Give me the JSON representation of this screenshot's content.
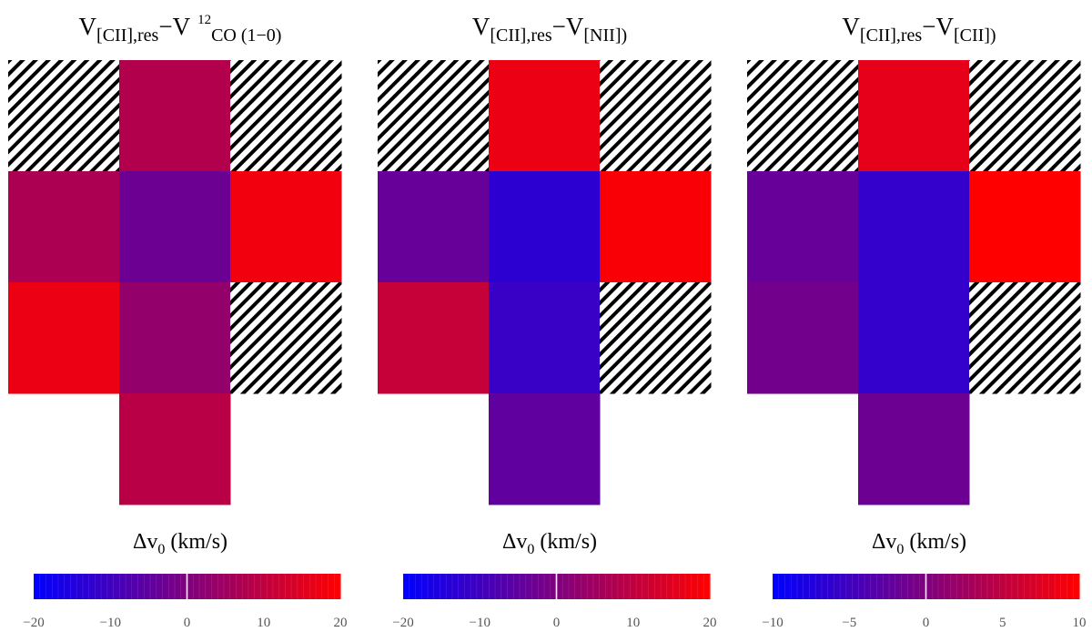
{
  "chart_data": [
    {
      "type": "heatmap",
      "title_parts": {
        "v": "V",
        "sub1": "[CII],res",
        "minus": "−",
        "v2": "V",
        "sup": "12",
        "tail": "CO (1−0)"
      },
      "grid_rows": 4,
      "grid_cols": 3,
      "cells": [
        [
          null,
          8,
          null
        ],
        [
          7,
          -3,
          18
        ],
        [
          17,
          3,
          null
        ],
        [
          "blank",
          9,
          "blank"
        ]
      ],
      "colorbar": {
        "label": "Δv",
        "label_sub": "0",
        "label_unit": "(km/s)",
        "vmin": -20,
        "vmax": 20,
        "ticks": [
          "−20",
          "−10",
          "0",
          "10",
          "20"
        ],
        "tick_values": [
          -20,
          -10,
          0,
          10,
          20
        ]
      }
    },
    {
      "type": "heatmap",
      "title_parts": {
        "v": "V",
        "sub1": "[CII],res",
        "minus": "−",
        "v2": "V",
        "sub2": "[NII])"
      },
      "grid_rows": 4,
      "grid_cols": 3,
      "cells": [
        [
          null,
          17,
          null
        ],
        [
          -4,
          -13,
          19
        ],
        [
          11,
          -11,
          null
        ],
        [
          "blank",
          -5,
          "blank"
        ]
      ],
      "colorbar": {
        "label": "Δv",
        "label_sub": "0",
        "label_unit": "(km/s)",
        "vmin": -20,
        "vmax": 20,
        "ticks": [
          "−20",
          "−10",
          "0",
          "10",
          "20"
        ],
        "tick_values": [
          -20,
          -10,
          0,
          10,
          20
        ]
      }
    },
    {
      "type": "heatmap",
      "title_parts": {
        "v": "V",
        "sub1": "[CII],res",
        "minus": "−",
        "v2": "V",
        "sub2": "[CII])"
      },
      "grid_rows": 4,
      "grid_cols": 3,
      "cells": [
        [
          null,
          8,
          null
        ],
        [
          -2,
          -6,
          10
        ],
        [
          -1,
          -6,
          null
        ],
        [
          "blank",
          -1.5,
          "blank"
        ]
      ],
      "colorbar": {
        "label": "Δv",
        "label_sub": "0",
        "label_unit": "(km/s)",
        "vmin": -10,
        "vmax": 10,
        "ticks": [
          "−10",
          "−5",
          "0",
          "5",
          "10"
        ],
        "tick_values": [
          -10,
          -5,
          0,
          5,
          10
        ]
      }
    }
  ]
}
